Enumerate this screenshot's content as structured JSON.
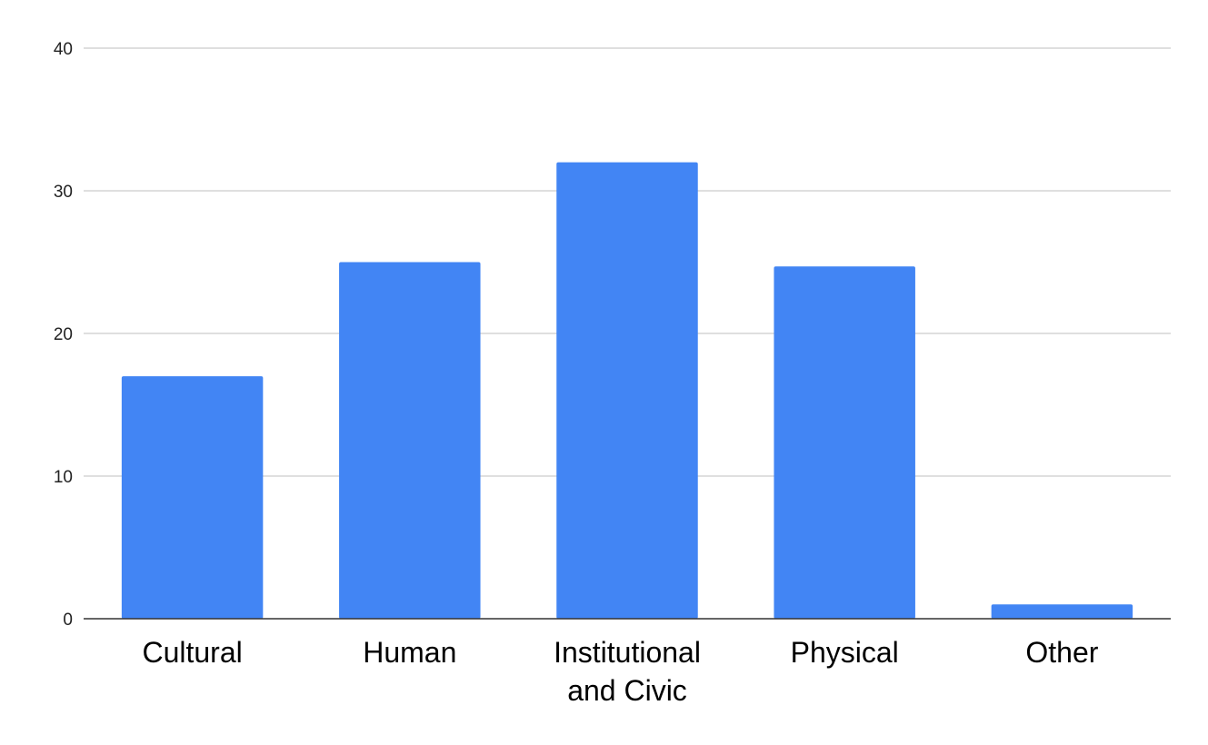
{
  "chart_data": {
    "type": "bar",
    "categories": [
      [
        "Cultural"
      ],
      [
        "Human"
      ],
      [
        "Institutional",
        "and Civic"
      ],
      [
        "Physical"
      ],
      [
        "Other"
      ]
    ],
    "values": [
      17,
      25,
      32,
      24.7,
      1
    ],
    "ylim": [
      0,
      40
    ],
    "yticks": [
      0,
      10,
      20,
      30,
      40
    ],
    "ytick_labels": [
      "0",
      "10",
      "20",
      "30",
      "40"
    ],
    "grid": true,
    "bar_color": "#4285f4",
    "title": "",
    "xlabel": "",
    "ylabel": ""
  }
}
